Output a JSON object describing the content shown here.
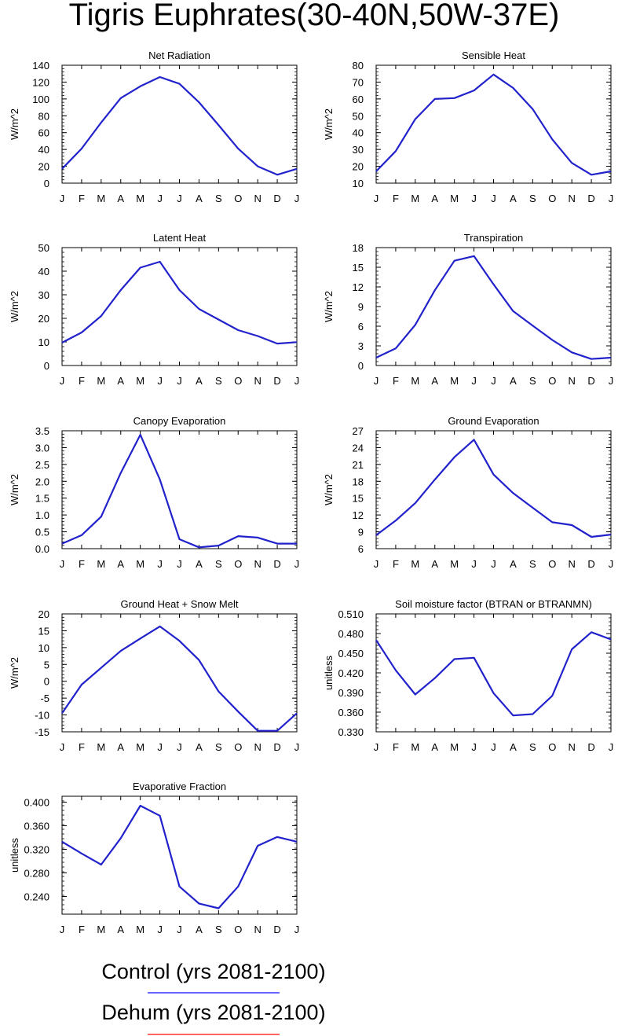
{
  "figure": {
    "title": "Tigris Euphrates(30-40N,50W-37E)"
  },
  "legend": [
    {
      "label": "Control (yrs 2081-2100)",
      "color": "#3333ff"
    },
    {
      "label": "Dehum (yrs 2081-2100)",
      "color": "#ff3333"
    }
  ],
  "chart_data": [
    {
      "type": "line",
      "title": "Net Radiation",
      "ylabel": "W/m^2",
      "categories": [
        "J",
        "F",
        "M",
        "A",
        "M",
        "J",
        "J",
        "A",
        "S",
        "O",
        "N",
        "D",
        "J"
      ],
      "ylim": [
        0,
        140
      ],
      "yticks": [
        "0",
        "20",
        "40",
        "60",
        "80",
        "100",
        "120",
        "140"
      ],
      "series": [
        {
          "color": "#2222cc",
          "values": [
            17,
            41,
            72,
            101,
            115,
            126,
            118,
            96,
            69,
            41,
            20,
            10,
            17
          ]
        }
      ]
    },
    {
      "type": "line",
      "title": "Sensible Heat",
      "ylabel": "W/m^2",
      "categories": [
        "J",
        "F",
        "M",
        "A",
        "M",
        "J",
        "J",
        "A",
        "S",
        "O",
        "N",
        "D",
        "J"
      ],
      "ylim": [
        10,
        80
      ],
      "yticks": [
        "10",
        "20",
        "30",
        "40",
        "50",
        "60",
        "70",
        "80"
      ],
      "series": [
        {
          "color": "#2222cc",
          "values": [
            17,
            29,
            48,
            60,
            60.5,
            65,
            74.5,
            66.5,
            54,
            36,
            22,
            15,
            17
          ]
        }
      ]
    },
    {
      "type": "line",
      "title": "Latent Heat",
      "ylabel": "W/m^2",
      "categories": [
        "J",
        "F",
        "M",
        "A",
        "M",
        "J",
        "J",
        "A",
        "S",
        "O",
        "N",
        "D",
        "J"
      ],
      "ylim": [
        0,
        50
      ],
      "yticks": [
        "0",
        "10",
        "20",
        "30",
        "40",
        "50"
      ],
      "series": [
        {
          "color": "#2222cc",
          "values": [
            9.7,
            14,
            21,
            32,
            41.5,
            44,
            32,
            24,
            19.5,
            15,
            12.5,
            9.3,
            9.9
          ]
        }
      ]
    },
    {
      "type": "line",
      "title": "Transpiration",
      "ylabel": "W/m^2",
      "categories": [
        "J",
        "F",
        "M",
        "A",
        "M",
        "J",
        "J",
        "A",
        "S",
        "O",
        "N",
        "D",
        "J"
      ],
      "ylim": [
        0,
        18
      ],
      "yticks": [
        "0",
        "3",
        "6",
        "9",
        "12",
        "15",
        "18"
      ],
      "series": [
        {
          "color": "#2222cc",
          "values": [
            1.2,
            2.6,
            6.2,
            11.5,
            16.0,
            16.7,
            12.4,
            8.3,
            6.1,
            3.9,
            2.0,
            1.0,
            1.2
          ]
        }
      ]
    },
    {
      "type": "line",
      "title": "Canopy Evaporation",
      "ylabel": "W/m^2",
      "categories": [
        "J",
        "F",
        "M",
        "A",
        "M",
        "J",
        "J",
        "A",
        "S",
        "O",
        "N",
        "D",
        "J"
      ],
      "ylim": [
        0,
        3.5
      ],
      "yticks": [
        "0.0",
        "0.5",
        "1.0",
        "1.5",
        "2.0",
        "2.5",
        "3.0",
        "3.5"
      ],
      "series": [
        {
          "color": "#2222cc",
          "values": [
            0.15,
            0.4,
            0.95,
            2.25,
            3.38,
            2.05,
            0.28,
            0.04,
            0.09,
            0.37,
            0.33,
            0.15,
            0.15
          ]
        }
      ]
    },
    {
      "type": "line",
      "title": "Ground Evaporation",
      "ylabel": "W/m^2",
      "categories": [
        "J",
        "F",
        "M",
        "A",
        "M",
        "J",
        "J",
        "A",
        "S",
        "O",
        "N",
        "D",
        "J"
      ],
      "ylim": [
        6,
        27
      ],
      "yticks": [
        "6",
        "9",
        "12",
        "15",
        "18",
        "21",
        "24",
        "27"
      ],
      "series": [
        {
          "color": "#2222cc",
          "values": [
            8.4,
            11.0,
            14.1,
            18.3,
            22.3,
            25.4,
            19.2,
            15.9,
            13.3,
            10.7,
            10.2,
            8.1,
            8.5
          ]
        }
      ]
    },
    {
      "type": "line",
      "title": "Ground Heat + Snow Melt",
      "ylabel": "W/m^2",
      "categories": [
        "J",
        "F",
        "M",
        "A",
        "M",
        "J",
        "J",
        "A",
        "S",
        "O",
        "N",
        "D",
        "J"
      ],
      "ylim": [
        -15,
        20
      ],
      "yticks": [
        "-15",
        "-10",
        "-5",
        "0",
        "5",
        "10",
        "15",
        "20"
      ],
      "series": [
        {
          "color": "#2222cc",
          "values": [
            -9.5,
            -1,
            4,
            9,
            12.7,
            16.3,
            12,
            6.3,
            -3,
            -9,
            -14.7,
            -14.7,
            -9.5
          ]
        }
      ]
    },
    {
      "type": "line",
      "title": "Soil moisture factor (BTRAN or BTRANMN)",
      "ylabel": "unitless",
      "categories": [
        "J",
        "F",
        "M",
        "A",
        "M",
        "J",
        "J",
        "A",
        "S",
        "O",
        "N",
        "D",
        "J"
      ],
      "ylim": [
        0.33,
        0.51
      ],
      "yticks": [
        "0.330",
        "0.360",
        "0.390",
        "0.420",
        "0.450",
        "0.480",
        "0.510"
      ],
      "series": [
        {
          "color": "#2222cc",
          "values": [
            0.47,
            0.424,
            0.387,
            0.412,
            0.441,
            0.443,
            0.389,
            0.355,
            0.357,
            0.385,
            0.456,
            0.482,
            0.471
          ]
        }
      ]
    },
    {
      "type": "line",
      "title": "Evaporative Fraction",
      "ylabel": "unitless",
      "categories": [
        "J",
        "F",
        "M",
        "A",
        "M",
        "J",
        "J",
        "A",
        "S",
        "O",
        "N",
        "D",
        "J"
      ],
      "ylim": [
        0.21,
        0.41
      ],
      "yticks": [
        "0.240",
        "0.280",
        "0.320",
        "0.360",
        "0.400"
      ],
      "series": [
        {
          "color": "#2222cc",
          "values": [
            0.333,
            0.313,
            0.294,
            0.339,
            0.394,
            0.377,
            0.257,
            0.228,
            0.22,
            0.257,
            0.326,
            0.341,
            0.333
          ]
        }
      ]
    }
  ]
}
